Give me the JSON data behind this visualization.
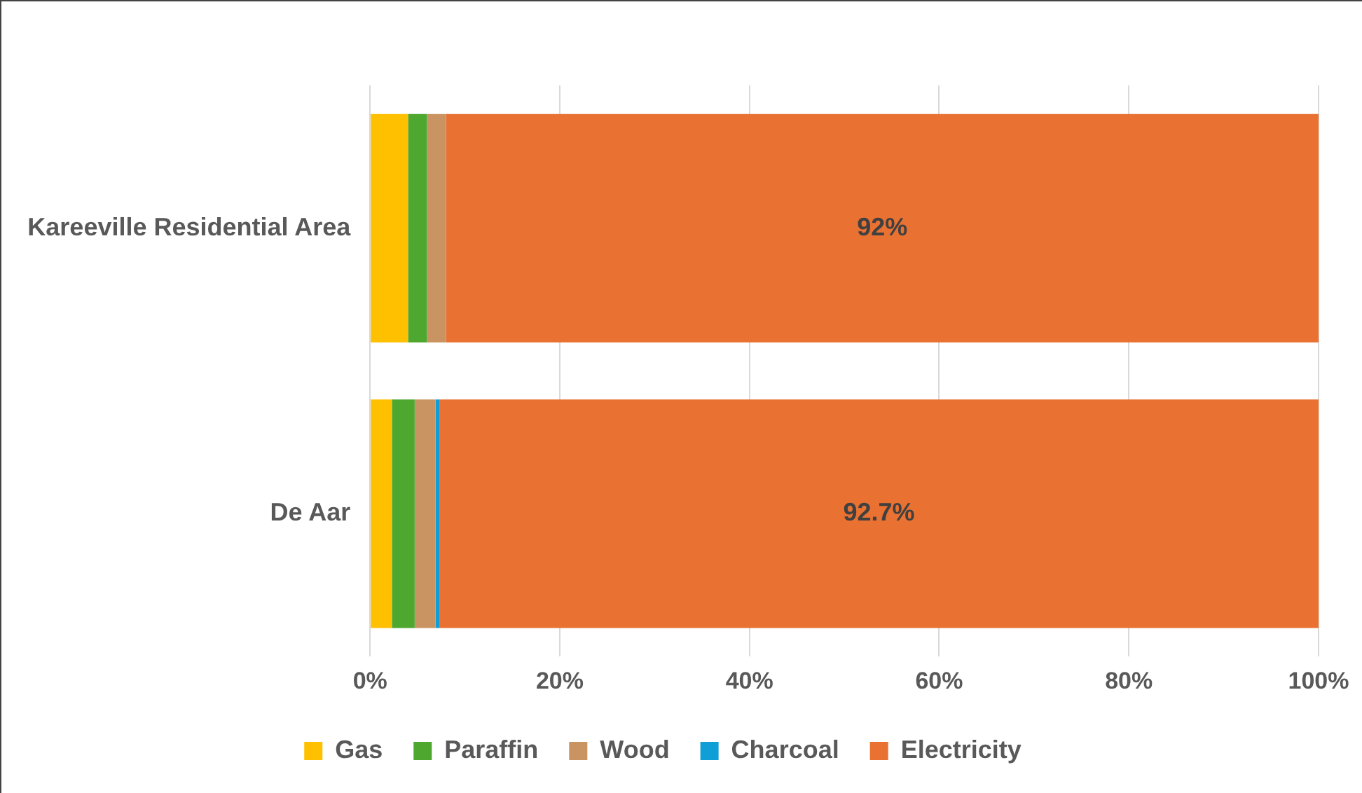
{
  "chart_data": {
    "type": "bar",
    "orientation": "horizontal",
    "stacked": true,
    "categories": [
      "Kareeville Residential Area",
      "De Aar"
    ],
    "series": [
      {
        "name": "Gas",
        "color": "#ffc000",
        "values": [
          4,
          2.3
        ]
      },
      {
        "name": "Paraffin",
        "color": "#4ea72e",
        "values": [
          2,
          2.4
        ]
      },
      {
        "name": "Wood",
        "color": "#c99462",
        "values": [
          2,
          2.2
        ]
      },
      {
        "name": "Charcoal",
        "color": "#0f9ed5",
        "values": [
          0,
          0.4
        ]
      },
      {
        "name": "Electricity",
        "color": "#e97132",
        "values": [
          92,
          92.7
        ],
        "value_labels": [
          "92%",
          "92.7%"
        ]
      }
    ],
    "xlim": [
      0,
      100
    ],
    "xticks": [
      {
        "value": 0,
        "label": "0%"
      },
      {
        "value": 20,
        "label": "20%"
      },
      {
        "value": 40,
        "label": "40%"
      },
      {
        "value": 60,
        "label": "60%"
      },
      {
        "value": 80,
        "label": "80%"
      },
      {
        "value": 100,
        "label": "100%"
      }
    ],
    "grid": "x",
    "legend": "bottom"
  }
}
